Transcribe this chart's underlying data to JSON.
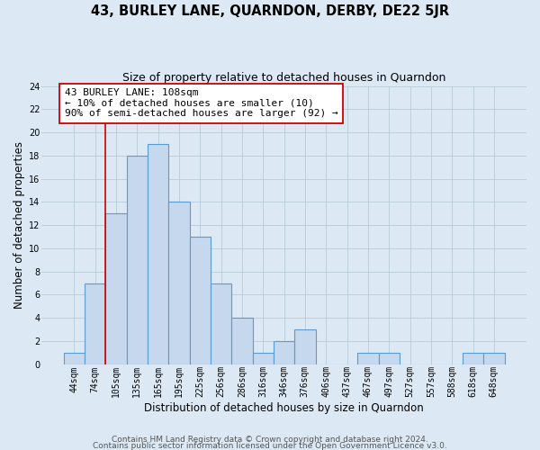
{
  "title": "43, BURLEY LANE, QUARNDON, DERBY, DE22 5JR",
  "subtitle": "Size of property relative to detached houses in Quarndon",
  "xlabel": "Distribution of detached houses by size in Quarndon",
  "ylabel": "Number of detached properties",
  "footer_line1": "Contains HM Land Registry data © Crown copyright and database right 2024.",
  "footer_line2": "Contains public sector information licensed under the Open Government Licence v3.0.",
  "bar_labels": [
    "44sqm",
    "74sqm",
    "105sqm",
    "135sqm",
    "165sqm",
    "195sqm",
    "225sqm",
    "256sqm",
    "286sqm",
    "316sqm",
    "346sqm",
    "376sqm",
    "406sqm",
    "437sqm",
    "467sqm",
    "497sqm",
    "527sqm",
    "557sqm",
    "588sqm",
    "618sqm",
    "648sqm"
  ],
  "bar_values": [
    1,
    7,
    13,
    18,
    19,
    14,
    11,
    7,
    4,
    1,
    2,
    3,
    0,
    0,
    1,
    1,
    0,
    0,
    0,
    1,
    1
  ],
  "bar_color": "#c5d8ed",
  "bar_edge_color": "#5b9bd5",
  "vline_index": 2,
  "annotation_title": "43 BURLEY LANE: 108sqm",
  "annotation_line2": "← 10% of detached houses are smaller (10)",
  "annotation_line3": "90% of semi-detached houses are larger (92) →",
  "vline_color": "#cc0000",
  "ann_edge_color": "#cc0000",
  "ylim": [
    0,
    24
  ],
  "yticks": [
    0,
    2,
    4,
    6,
    8,
    10,
    12,
    14,
    16,
    18,
    20,
    22,
    24
  ],
  "bg_color": "#dce9f5",
  "grid_color": "#b8c9d8",
  "title_fontsize": 10.5,
  "subtitle_fontsize": 9,
  "axis_label_fontsize": 8.5,
  "tick_fontsize": 7,
  "ann_fontsize": 8,
  "footer_fontsize": 6.5
}
